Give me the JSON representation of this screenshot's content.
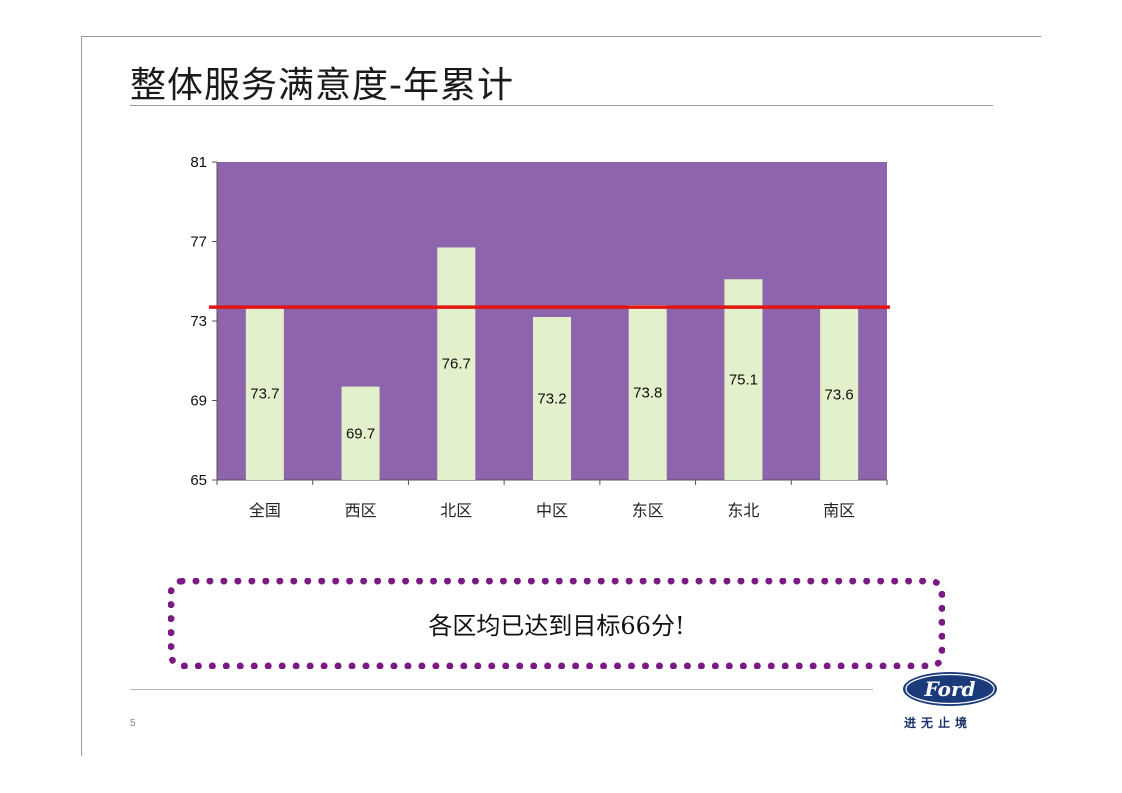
{
  "slide": {
    "title": "整体服务满意度-年累计",
    "callout": "各区均已达到目标66分!",
    "page_number": "5",
    "brand": {
      "logo_text": "Ford",
      "slogan": "进无止境",
      "logo_color": "#1b3a7a"
    }
  },
  "colors": {
    "plot_bg": "#8e65ad",
    "bar": "#e2f1cb",
    "target_line": "#e21515",
    "callout_dots": "#7b1a83"
  },
  "chart_data": {
    "type": "bar",
    "categories": [
      "全国",
      "西区",
      "北区",
      "中区",
      "东区",
      "东北",
      "南区"
    ],
    "values": [
      73.7,
      69.7,
      76.7,
      73.2,
      73.8,
      75.1,
      73.6
    ],
    "data_labels": [
      "73.7",
      "69.7",
      "76.7",
      "73.2",
      "73.8",
      "75.1",
      "73.6"
    ],
    "ylim": [
      65,
      81
    ],
    "yticks": [
      "65",
      "69",
      "73",
      "77",
      "81"
    ],
    "reference_line": {
      "value": 73.7
    },
    "grid": false
  }
}
